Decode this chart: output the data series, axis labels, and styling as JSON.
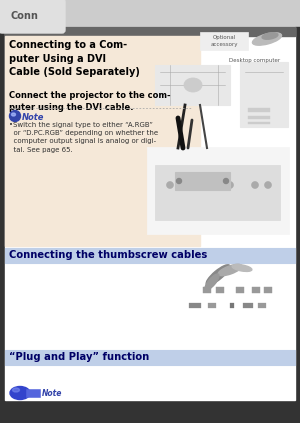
{
  "page_bg": "#ffffff",
  "outer_bg": "#333333",
  "tab_color": "#e0e0e0",
  "tab_text": "Conn",
  "tab_text_color": "#555555",
  "section1_bg": "#f5e8d8",
  "section1_header_bg": "#666666",
  "section1_title": "Connecting to a Com-\nputer Using a DVI\nCable (Sold Separately)",
  "section1_subtitle": "Connect the projector to the com-\nputer using the DVI cable.",
  "note_text": "Note",
  "note_bullet": "•Switch the signal type to either “A.RGB”\n  or “D.PC.RGB” depending on whether the\n  computer output signal is analog or digi-\n  tal. See page 65.",
  "section2_bg": "#bfcfe8",
  "section2_border": "#8899cc",
  "section2_text": "Connecting the thumbscrew cables",
  "section2_text_color": "#000066",
  "section3_bg": "#bfcfe8",
  "section3_border": "#8899cc",
  "section3_text": "“Plug and Play” function",
  "section3_text_color": "#000066",
  "optional_label": "Optional\naccessory",
  "desktop_label": "Desktop computer",
  "note_icon_color": "#4455bb",
  "plug_icon_color": "#3344cc"
}
